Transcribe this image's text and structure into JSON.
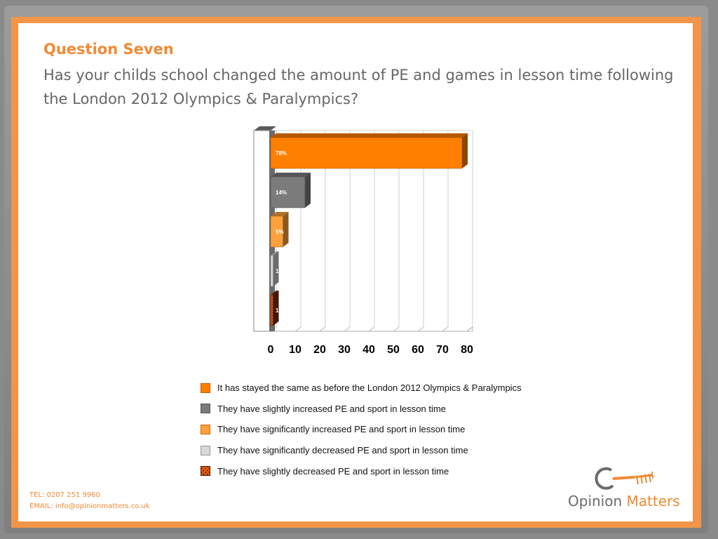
{
  "header": {
    "title": "Question Seven",
    "question": "Has your childs school changed the amount of PE and games in lesson time following the London 2012 Olympics & Paralympics?"
  },
  "chart_data": {
    "type": "bar",
    "orientation": "horizontal",
    "style": "3d",
    "categories": [
      "It has stayed the same as before the London 2012 Olympics & Paralympics",
      "They have slightly increased PE and sport in lesson time",
      "They have significantly increased PE and sport in lesson time",
      "They have significantly decreased PE and sport in lesson time",
      "They have slightly decreased PE and sport in lesson time"
    ],
    "values": [
      78,
      14,
      5,
      1,
      1
    ],
    "data_labels": [
      "78%",
      "14%",
      "5%",
      "1",
      "1"
    ],
    "colors": [
      "#ff7f00",
      "#7b7b7b",
      "#ffa03a",
      "#d8d8d8",
      "#7a2a08"
    ],
    "xlim": [
      0,
      80
    ],
    "xticks": [
      0,
      10,
      20,
      30,
      40,
      50,
      60,
      70,
      80
    ],
    "grid": true,
    "legend_position": "bottom",
    "title": "",
    "xlabel": "",
    "ylabel": ""
  },
  "legend": {
    "items": [
      "It has stayed the same as before the London 2012 Olympics & Paralympics",
      "They have slightly increased PE and sport in lesson time",
      "They have significantly increased PE and sport in lesson time",
      "They have significantly decreased PE and sport in lesson time",
      "They have slightly decreased PE and sport in lesson time"
    ]
  },
  "footer": {
    "tel": "TEL: 0207 251 9960",
    "email": "EMAIL: info@opinionmatters.co.uk"
  },
  "logo": {
    "word1": "Opinion",
    "word2": "Matters",
    "icon": "key-logo-icon"
  }
}
